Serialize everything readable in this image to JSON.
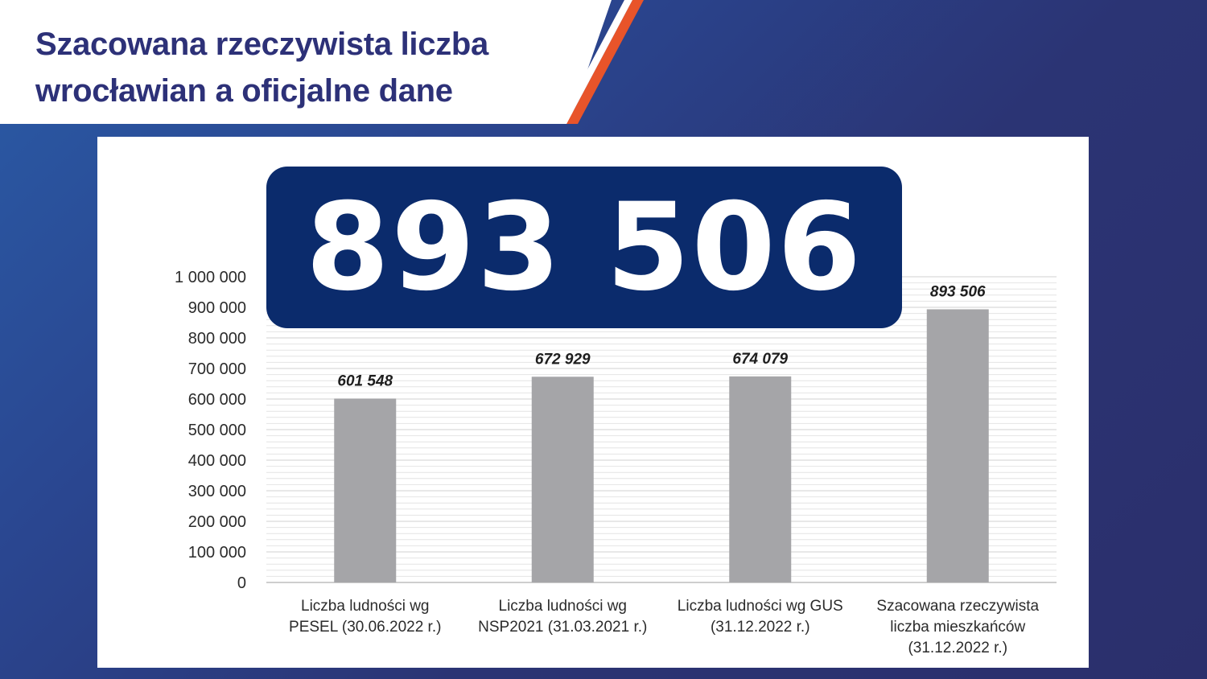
{
  "slide": {
    "title": "Szacowana rzeczywista liczba wrocławian a oficjalne dane",
    "highlight_number": "893 506",
    "colors": {
      "title": "#2d3178",
      "background": "#2b3170",
      "accent_stripe": "#e8542a",
      "number_box": "#0b2b6c",
      "bar": "#a5a5a8"
    }
  },
  "chart_data": {
    "type": "bar",
    "categories": [
      [
        "Liczba ludności wg",
        "PESEL (30.06.2022 r.)"
      ],
      [
        "Liczba ludności wg",
        "NSP2021 (31.03.2021 r.)"
      ],
      [
        "Liczba ludności wg GUS",
        "(31.12.2022 r.)"
      ],
      [
        "Szacowana rzeczywista",
        "liczba mieszkańców",
        "(31.12.2022 r.)"
      ]
    ],
    "values": [
      601548,
      672929,
      674079,
      893506
    ],
    "data_labels": [
      "601 548",
      "672 929",
      "674 079",
      "893 506"
    ],
    "ylim": [
      0,
      1000000
    ],
    "y_ticks": [
      0,
      100000,
      200000,
      300000,
      400000,
      500000,
      600000,
      700000,
      800000,
      900000,
      1000000
    ],
    "y_tick_labels": [
      "0",
      "100 000",
      "200 000",
      "300 000",
      "400 000",
      "500 000",
      "600 000",
      "700 000",
      "800 000",
      "900 000",
      "1 000 000"
    ],
    "grid": true,
    "xlabel": "",
    "ylabel": ""
  }
}
